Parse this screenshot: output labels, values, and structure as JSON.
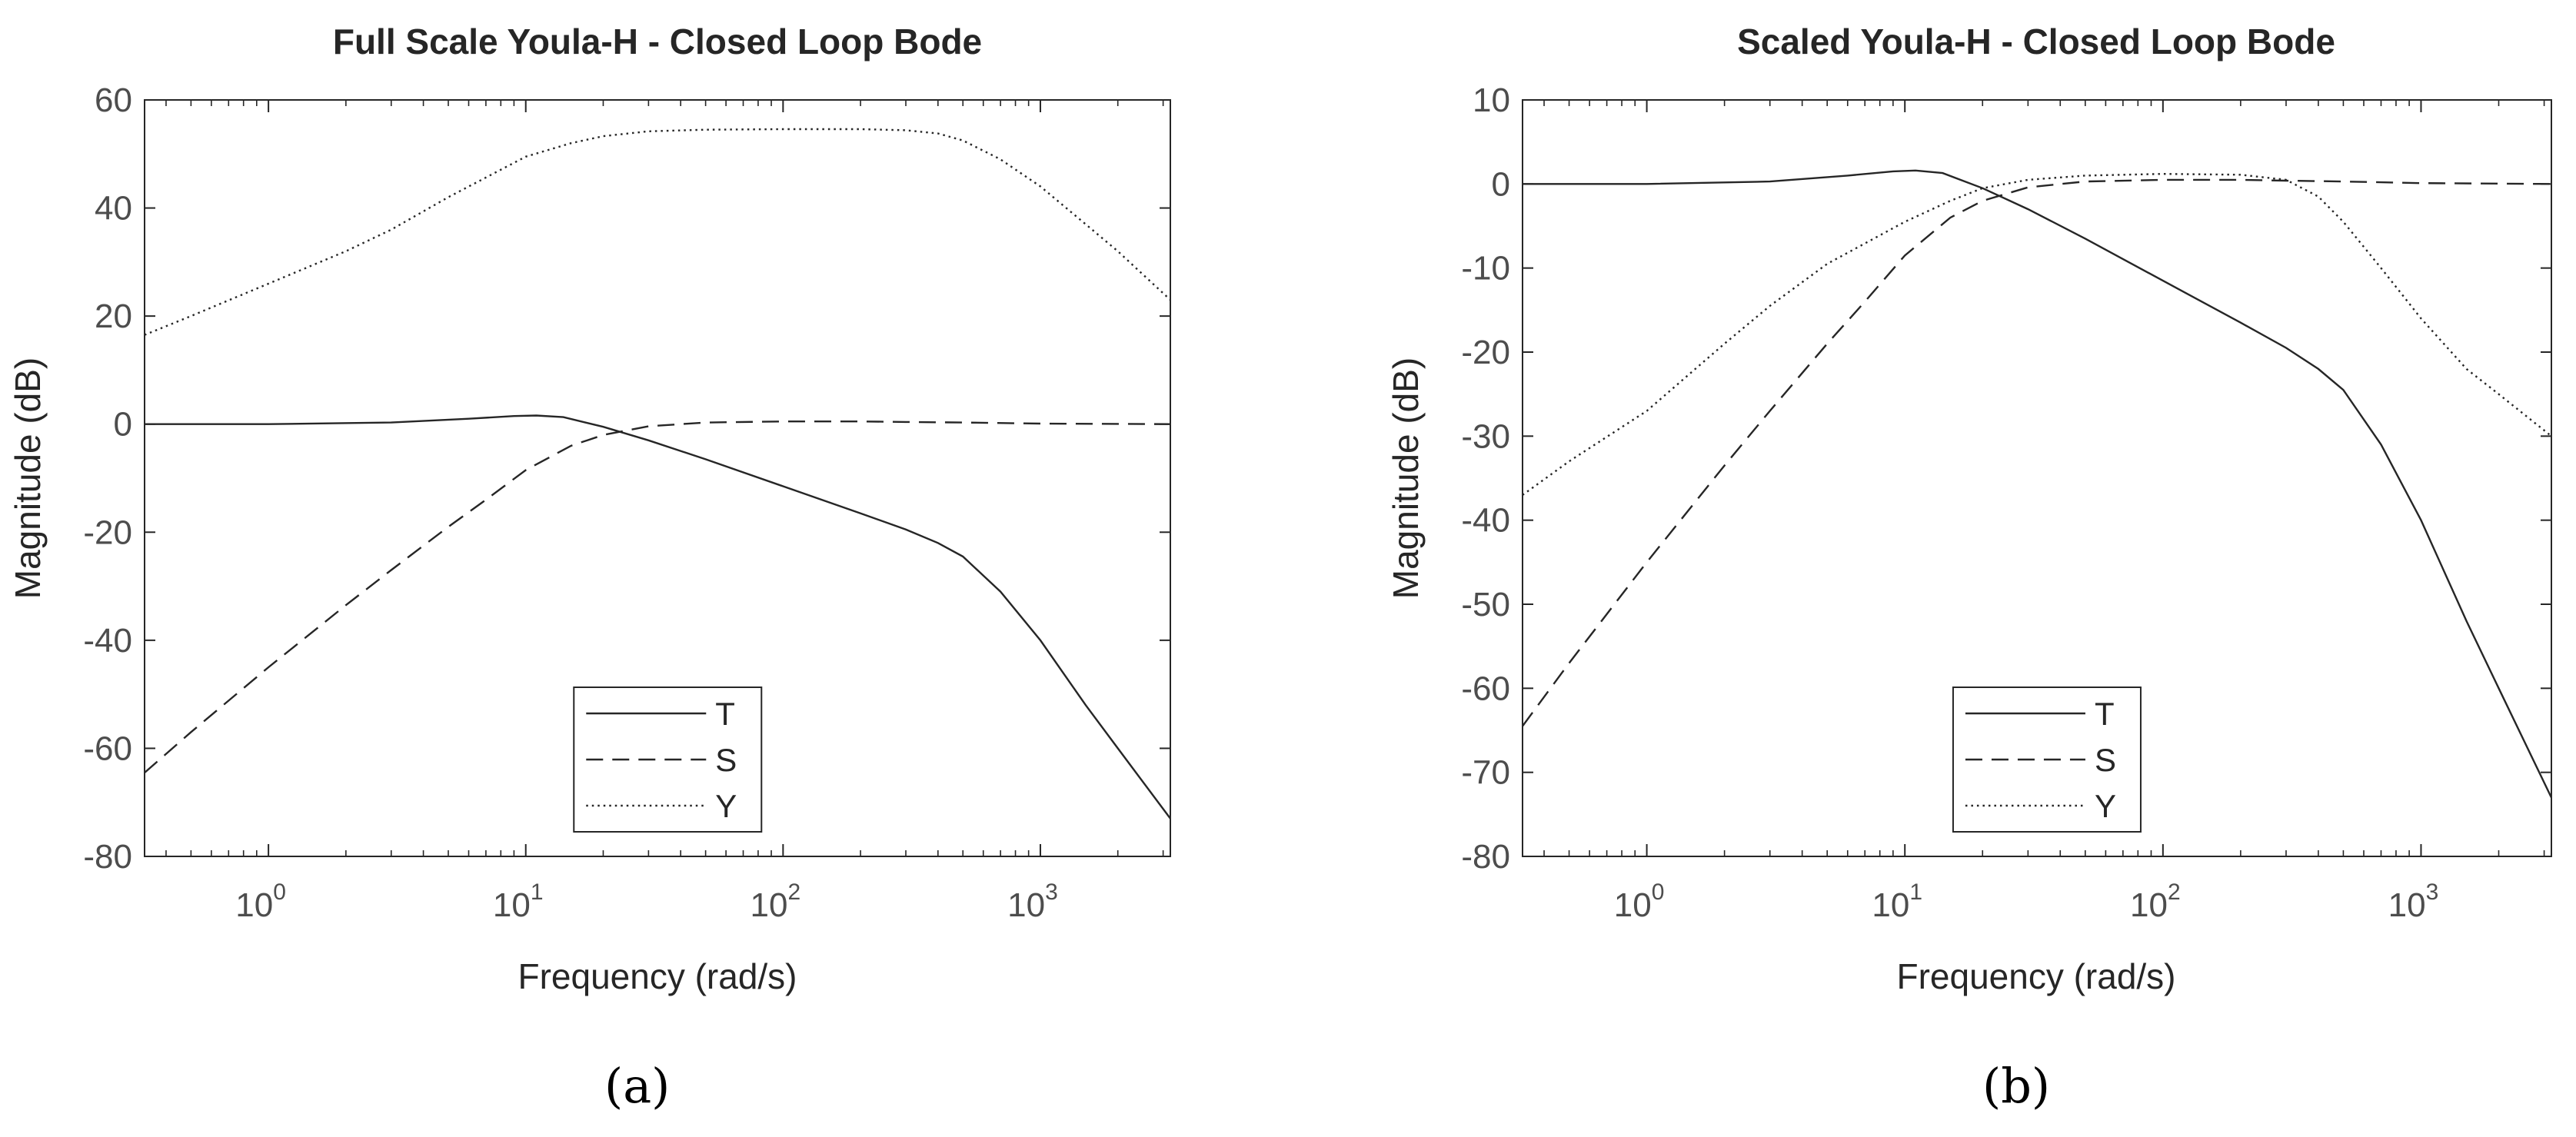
{
  "chart_data": [
    {
      "type": "line",
      "title": "Full Scale Youla-H - Closed Loop Bode",
      "xlabel": "Frequency (rad/s)",
      "ylabel": "Magnitude (dB)",
      "xscale": "log",
      "xlim": [
        0.33,
        3200
      ],
      "ylim": [
        -80,
        60
      ],
      "yticks": [
        60,
        40,
        20,
        0,
        -20,
        -40,
        -60,
        -80
      ],
      "xticks": [
        1,
        10,
        100,
        1000
      ],
      "xtick_labels": [
        {
          "base": "10",
          "exp": "0"
        },
        {
          "base": "10",
          "exp": "1"
        },
        {
          "base": "10",
          "exp": "2"
        },
        {
          "base": "10",
          "exp": "3"
        }
      ],
      "grid": false,
      "legend": "bottom-center",
      "panel_label": "(a)",
      "series": [
        {
          "name": "T",
          "style": "solid",
          "x": [
            0.33,
            1,
            3,
            6,
            9,
            11,
            14,
            20,
            30,
            50,
            100,
            200,
            300,
            400,
            500,
            700,
            1000,
            1500,
            2000,
            3200
          ],
          "y": [
            0,
            0,
            0.3,
            1,
            1.5,
            1.6,
            1.3,
            -0.5,
            -3,
            -6.5,
            -11.5,
            -16.5,
            -19.5,
            -22,
            -24.5,
            -31,
            -40,
            -52,
            -60,
            -73
          ]
        },
        {
          "name": "S",
          "style": "dashed",
          "x": [
            0.33,
            0.5,
            1,
            2,
            3,
            5,
            7,
            10,
            15,
            20,
            30,
            50,
            100,
            200,
            300,
            500,
            1000,
            3200
          ],
          "y": [
            -64.5,
            -57,
            -45,
            -33.5,
            -27,
            -19,
            -14,
            -8.5,
            -4,
            -2,
            -0.4,
            0.3,
            0.5,
            0.5,
            0.4,
            0.3,
            0.1,
            0
          ]
        },
        {
          "name": "Y",
          "style": "dotted",
          "x": [
            0.33,
            0.5,
            1,
            2,
            3,
            5,
            10,
            15,
            20,
            30,
            50,
            100,
            200,
            300,
            400,
            500,
            700,
            1000,
            1500,
            2000,
            3200
          ],
          "y": [
            16.5,
            20,
            26,
            32,
            36,
            42,
            49.5,
            52,
            53.3,
            54.2,
            54.5,
            54.6,
            54.6,
            54.4,
            53.8,
            52.5,
            49,
            44,
            37,
            32,
            23
          ]
        }
      ]
    },
    {
      "type": "line",
      "title": "Scaled Youla-H - Closed Loop Bode",
      "xlabel": "Frequency (rad/s)",
      "ylabel": "Magnitude (dB)",
      "xscale": "log",
      "xlim": [
        0.33,
        3200
      ],
      "ylim": [
        -80,
        10
      ],
      "yticks": [
        10,
        0,
        -10,
        -20,
        -30,
        -40,
        -50,
        -60,
        -70,
        -80
      ],
      "xticks": [
        1,
        10,
        100,
        1000
      ],
      "xtick_labels": [
        {
          "base": "10",
          "exp": "0"
        },
        {
          "base": "10",
          "exp": "1"
        },
        {
          "base": "10",
          "exp": "2"
        },
        {
          "base": "10",
          "exp": "3"
        }
      ],
      "grid": false,
      "legend": "bottom-center",
      "panel_label": "(b)",
      "series": [
        {
          "name": "T",
          "style": "solid",
          "x": [
            0.33,
            1,
            3,
            6,
            9,
            11,
            14,
            20,
            30,
            50,
            100,
            200,
            300,
            400,
            500,
            700,
            1000,
            1500,
            2000,
            3200
          ],
          "y": [
            0,
            0,
            0.3,
            1,
            1.5,
            1.6,
            1.3,
            -0.5,
            -3,
            -6.5,
            -11.5,
            -16.5,
            -19.5,
            -22,
            -24.5,
            -31,
            -40,
            -52,
            -60,
            -73
          ]
        },
        {
          "name": "S",
          "style": "dashed",
          "x": [
            0.33,
            0.5,
            1,
            2,
            3,
            5,
            7,
            10,
            15,
            20,
            30,
            50,
            100,
            200,
            300,
            500,
            1000,
            3200
          ],
          "y": [
            -64.5,
            -57,
            -45,
            -33.5,
            -27,
            -19,
            -14,
            -8.5,
            -4,
            -2,
            -0.4,
            0.3,
            0.5,
            0.5,
            0.4,
            0.3,
            0.1,
            0
          ]
        },
        {
          "name": "Y",
          "style": "dotted",
          "x": [
            0.33,
            0.5,
            1,
            2,
            3,
            5,
            10,
            15,
            20,
            30,
            50,
            100,
            200,
            300,
            400,
            500,
            700,
            1000,
            1500,
            2000,
            3200
          ],
          "y": [
            -37,
            -33,
            -27,
            -19,
            -14.5,
            -9.5,
            -4.5,
            -2,
            -0.5,
            0.5,
            1,
            1.2,
            1.1,
            0.5,
            -1.5,
            -4.5,
            -10,
            -16,
            -22,
            -25,
            -30
          ]
        }
      ]
    }
  ]
}
